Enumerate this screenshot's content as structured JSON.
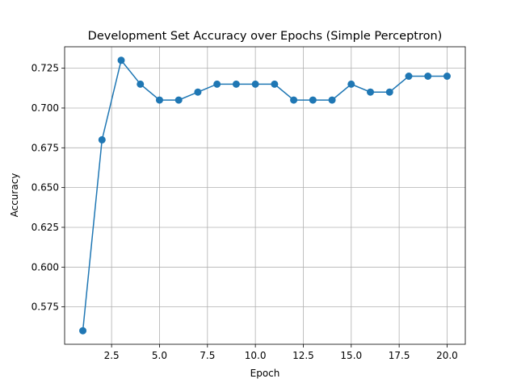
{
  "chart_data": {
    "type": "line",
    "title": "Development Set Accuracy over Epochs (Simple Perceptron)",
    "xlabel": "Epoch",
    "ylabel": "Accuracy",
    "xlim": [
      0.05,
      20.95
    ],
    "ylim": [
      0.5515,
      0.7385
    ],
    "xticks": [
      "2.5",
      "5.0",
      "7.5",
      "10.0",
      "12.5",
      "15.0",
      "17.5",
      "20.0"
    ],
    "yticks": [
      "0.575",
      "0.600",
      "0.625",
      "0.650",
      "0.675",
      "0.700",
      "0.725"
    ],
    "grid": true,
    "marker": "circle",
    "series": [
      {
        "x": [
          1,
          2,
          3,
          4,
          5,
          6,
          7,
          8,
          9,
          10,
          11,
          12,
          13,
          14,
          15,
          16,
          17,
          18,
          19,
          20
        ],
        "y": [
          0.56,
          0.68,
          0.73,
          0.715,
          0.705,
          0.705,
          0.71,
          0.715,
          0.715,
          0.715,
          0.715,
          0.705,
          0.705,
          0.705,
          0.715,
          0.71,
          0.71,
          0.72,
          0.72,
          0.72
        ],
        "color": "#1f77b4"
      }
    ]
  }
}
